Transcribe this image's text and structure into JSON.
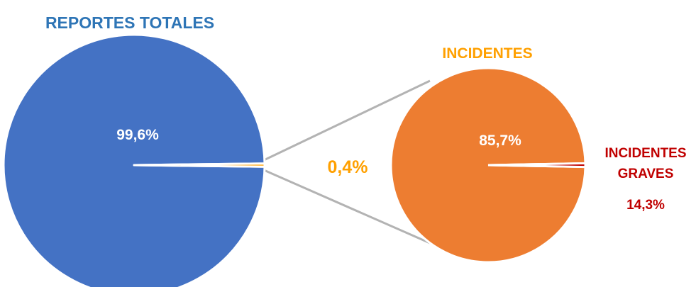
{
  "chart_data": [
    {
      "type": "pie",
      "title": "REPORTES TOTALES",
      "slices": [
        {
          "label": "",
          "value": 99.6,
          "value_label": "99,6%",
          "color": "#4472c4"
        },
        {
          "label": "",
          "value": 0.4,
          "value_label": "0,4%",
          "color": "#ffa000"
        }
      ],
      "exploded_slice": 1
    },
    {
      "type": "pie",
      "title": "INCIDENTES",
      "slices": [
        {
          "label": "",
          "value": 85.7,
          "value_label": "85,7%",
          "color": "#ed7d31"
        },
        {
          "label": "INCIDENTES GRAVES",
          "value": 14.3,
          "value_label": "14,3%",
          "color": "#c00000"
        }
      ]
    }
  ],
  "colors": {
    "title_left": "#2e75b6",
    "title_right": "#ffa000",
    "connector": "#b3b3b3",
    "label_white": "#ffffff",
    "small_value": "#ffa000",
    "graves": "#c00000"
  },
  "labels": {
    "graves_line1": "INCIDENTES",
    "graves_line2": "GRAVES"
  }
}
